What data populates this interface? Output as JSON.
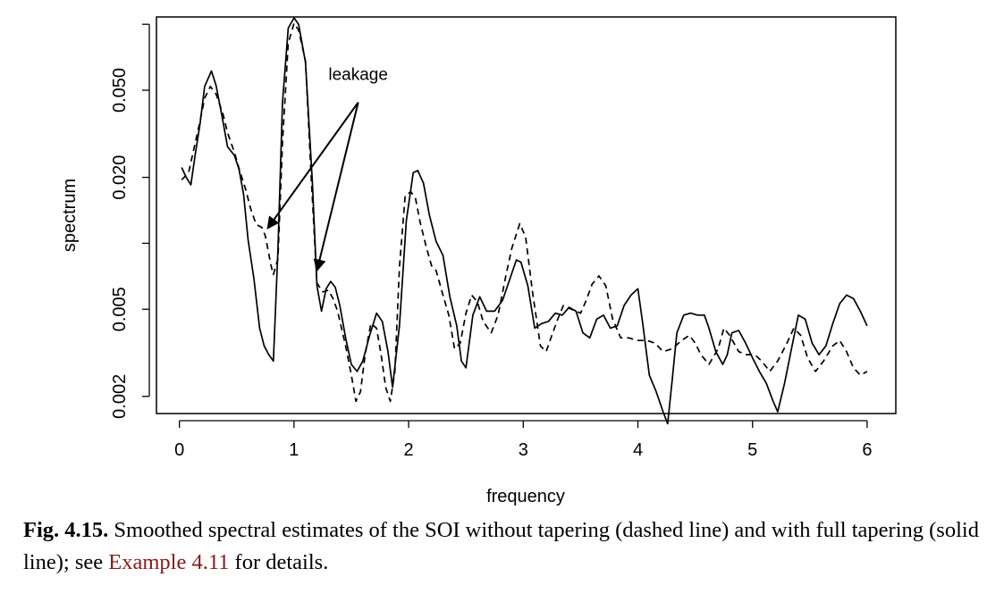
{
  "chart_data": {
    "type": "line",
    "xlabel": "frequency",
    "ylabel": "spectrum",
    "xlim": [
      -0.2,
      6.25
    ],
    "ylim": [
      0.00167,
      0.108
    ],
    "y_scale": "log",
    "x_ticks": [
      0,
      1,
      2,
      3,
      4,
      5,
      6
    ],
    "x_tick_labels": [
      "0",
      "1",
      "2",
      "3",
      "4",
      "5",
      "6"
    ],
    "y_ticks": [
      0.002,
      0.005,
      0.02,
      0.05
    ],
    "y_tick_labels": [
      "0.002",
      "0.005",
      "0.020",
      "0.050"
    ],
    "y_minor_ticks": [
      0.01,
      0.1
    ],
    "grid": false,
    "annotation": {
      "text": "leakage",
      "text_at": [
        1.56,
        0.0558
      ],
      "arrow_from": [
        1.56,
        0.044
      ],
      "arrow_targets": [
        [
          0.77,
          0.0117
        ],
        [
          1.2,
          0.0075
        ]
      ]
    },
    "series": [
      {
        "style": "dashed",
        "color": "#000000",
        "x": [
          0.02,
          0.08,
          0.12,
          0.18,
          0.22,
          0.27,
          0.32,
          0.38,
          0.42,
          0.48,
          0.52,
          0.58,
          0.62,
          0.67,
          0.72,
          0.75,
          0.8,
          0.82,
          0.86,
          0.9,
          0.95,
          1.0,
          1.04,
          1.1,
          1.15,
          1.2,
          1.25,
          1.3,
          1.34,
          1.38,
          1.45,
          1.5,
          1.54,
          1.58,
          1.62,
          1.67,
          1.72,
          1.76,
          1.8,
          1.84,
          1.88,
          1.92,
          1.97,
          2.02,
          2.06,
          2.1,
          2.15,
          2.2,
          2.24,
          2.3,
          2.35,
          2.4,
          2.45,
          2.5,
          2.55,
          2.6,
          2.65,
          2.72,
          2.78,
          2.85,
          2.9,
          2.97,
          3.02,
          3.08,
          3.15,
          3.2,
          3.25,
          3.3,
          3.35,
          3.42,
          3.5,
          3.55,
          3.6,
          3.66,
          3.72,
          3.78,
          3.85,
          3.92,
          4.0,
          4.08,
          4.15,
          4.22,
          4.3,
          4.38,
          4.45,
          4.5,
          4.55,
          4.62,
          4.7,
          4.75,
          4.8,
          4.88,
          4.95,
          5.02,
          5.08,
          5.15,
          5.22,
          5.3,
          5.36,
          5.42,
          5.48,
          5.55,
          5.62,
          5.7,
          5.76,
          5.82,
          5.88,
          5.94,
          6.0
        ],
        "y": [
          0.0195,
          0.021,
          0.026,
          0.036,
          0.046,
          0.052,
          0.048,
          0.039,
          0.032,
          0.026,
          0.022,
          0.0175,
          0.0145,
          0.0122,
          0.0118,
          0.0108,
          0.0079,
          0.0072,
          0.0085,
          0.029,
          0.082,
          0.101,
          0.094,
          0.068,
          0.02,
          0.0066,
          0.006,
          0.0061,
          0.0056,
          0.0049,
          0.0034,
          0.0025,
          0.0019,
          0.0021,
          0.0031,
          0.0043,
          0.0041,
          0.0031,
          0.0022,
          0.0019,
          0.0026,
          0.0078,
          0.0165,
          0.0172,
          0.016,
          0.0125,
          0.0098,
          0.0079,
          0.0075,
          0.0058,
          0.0047,
          0.0033,
          0.0035,
          0.0048,
          0.0058,
          0.0054,
          0.0044,
          0.0039,
          0.0047,
          0.0072,
          0.0095,
          0.0123,
          0.0107,
          0.006,
          0.0034,
          0.0032,
          0.0038,
          0.0045,
          0.0052,
          0.005,
          0.0048,
          0.0055,
          0.0065,
          0.0071,
          0.0064,
          0.0045,
          0.0037,
          0.0037,
          0.0036,
          0.0036,
          0.0035,
          0.0032,
          0.0033,
          0.0036,
          0.0038,
          0.0035,
          0.0031,
          0.0028,
          0.0033,
          0.0041,
          0.0038,
          0.0032,
          0.0031,
          0.0031,
          0.0029,
          0.0026,
          0.0029,
          0.0035,
          0.0041,
          0.0038,
          0.003,
          0.0026,
          0.0029,
          0.0034,
          0.0036,
          0.0032,
          0.0027,
          0.0025,
          0.0026
        ]
      },
      {
        "style": "solid",
        "color": "#000000",
        "x": [
          0.02,
          0.06,
          0.1,
          0.14,
          0.18,
          0.22,
          0.28,
          0.32,
          0.37,
          0.42,
          0.48,
          0.52,
          0.56,
          0.6,
          0.65,
          0.7,
          0.74,
          0.78,
          0.82,
          0.86,
          0.9,
          0.95,
          1.0,
          1.04,
          1.1,
          1.16,
          1.2,
          1.24,
          1.28,
          1.32,
          1.36,
          1.4,
          1.45,
          1.5,
          1.55,
          1.6,
          1.66,
          1.72,
          1.77,
          1.82,
          1.86,
          1.92,
          1.98,
          2.04,
          2.08,
          2.13,
          2.18,
          2.24,
          2.3,
          2.36,
          2.42,
          2.46,
          2.5,
          2.56,
          2.62,
          2.68,
          2.75,
          2.82,
          2.88,
          2.94,
          2.98,
          3.04,
          3.1,
          3.16,
          3.22,
          3.28,
          3.34,
          3.4,
          3.46,
          3.52,
          3.58,
          3.64,
          3.7,
          3.76,
          3.82,
          3.88,
          3.94,
          4.0,
          4.04,
          4.1,
          4.16,
          4.22,
          4.26,
          4.3,
          4.34,
          4.4,
          4.46,
          4.52,
          4.58,
          4.62,
          4.68,
          4.74,
          4.78,
          4.82,
          4.88,
          4.94,
          5.0,
          5.06,
          5.12,
          5.18,
          5.22,
          5.28,
          5.34,
          5.4,
          5.46,
          5.52,
          5.58,
          5.64,
          5.7,
          5.76,
          5.82,
          5.88,
          5.94,
          6.0
        ],
        "y": [
          0.0222,
          0.02,
          0.0185,
          0.0258,
          0.035,
          0.052,
          0.0612,
          0.0525,
          0.0385,
          0.0276,
          0.0252,
          0.0218,
          0.0168,
          0.0103,
          0.0069,
          0.0041,
          0.0034,
          0.0031,
          0.0029,
          0.0094,
          0.044,
          0.096,
          0.107,
          0.1,
          0.067,
          0.019,
          0.0064,
          0.0049,
          0.0062,
          0.0067,
          0.0063,
          0.0052,
          0.0037,
          0.0028,
          0.0026,
          0.0029,
          0.0038,
          0.0048,
          0.0044,
          0.0032,
          0.0022,
          0.0042,
          0.0127,
          0.021,
          0.0215,
          0.0188,
          0.0135,
          0.0102,
          0.0088,
          0.0057,
          0.0042,
          0.0029,
          0.0027,
          0.0047,
          0.0057,
          0.0049,
          0.0049,
          0.0055,
          0.0068,
          0.0084,
          0.0082,
          0.0064,
          0.0041,
          0.0043,
          0.0044,
          0.0048,
          0.0047,
          0.0051,
          0.0049,
          0.0039,
          0.0037,
          0.0045,
          0.0047,
          0.0041,
          0.0042,
          0.0052,
          0.0058,
          0.0062,
          0.0044,
          0.0025,
          0.0021,
          0.0017,
          0.0015,
          0.0024,
          0.0039,
          0.0047,
          0.0048,
          0.0047,
          0.0047,
          0.0041,
          0.0032,
          0.0028,
          0.0031,
          0.0039,
          0.004,
          0.0035,
          0.003,
          0.0026,
          0.0023,
          0.0019,
          0.0017,
          0.0023,
          0.0033,
          0.0047,
          0.0045,
          0.0035,
          0.0031,
          0.0034,
          0.0043,
          0.0053,
          0.0058,
          0.0056,
          0.0049,
          0.0042
        ]
      }
    ]
  },
  "caption": {
    "label": "Fig. 4.15.",
    "text_before": " Smoothed spectral estimates of the SOI without tapering (dashed line) and with full tapering (solid line); see ",
    "link": "Example 4.11",
    "text_after": " for details."
  }
}
